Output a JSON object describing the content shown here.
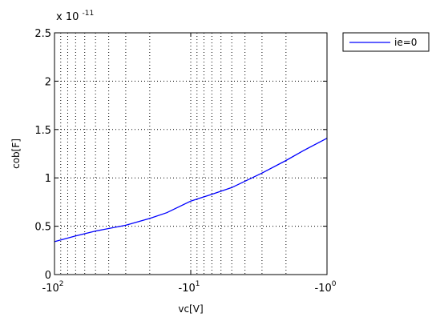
{
  "chart_data": {
    "type": "line",
    "xlabel": "vc[V]",
    "ylabel": "cob[F]",
    "x_scale": "symlog-negative-log10",
    "xlim": [
      -100,
      -1
    ],
    "ylim": [
      0,
      2.5e-11
    ],
    "y_multiplier_label": "x 10",
    "y_multiplier_exponent": "-11",
    "x_ticks": [
      {
        "value": -100,
        "base": "-10",
        "exp": "2"
      },
      {
        "value": -10,
        "base": "-10",
        "exp": "1"
      },
      {
        "value": -1,
        "base": "-10",
        "exp": "0"
      }
    ],
    "y_ticks": [
      {
        "value": 0,
        "label": "0"
      },
      {
        "value": 5e-12,
        "label": "0.5"
      },
      {
        "value": 1e-11,
        "label": "1"
      },
      {
        "value": 1.5e-11,
        "label": "1.5"
      },
      {
        "value": 2e-11,
        "label": "2"
      },
      {
        "value": 2.5e-11,
        "label": "2.5"
      }
    ],
    "grid": true,
    "legend_position": "outside-top-right",
    "series": [
      {
        "name": "ie=0",
        "color": "#0000ff",
        "x": [
          -100,
          -70,
          -50,
          -30,
          -20,
          -15,
          -10,
          -7,
          -5,
          -3,
          -2,
          -1.5,
          -1
        ],
        "y": [
          3.4e-12,
          4e-12,
          4.5e-12,
          5.1e-12,
          5.8e-12,
          6.4e-12,
          7.6e-12,
          8.3e-12,
          9e-12,
          1.05e-11,
          1.18e-11,
          1.28e-11,
          1.41e-11
        ]
      }
    ]
  }
}
